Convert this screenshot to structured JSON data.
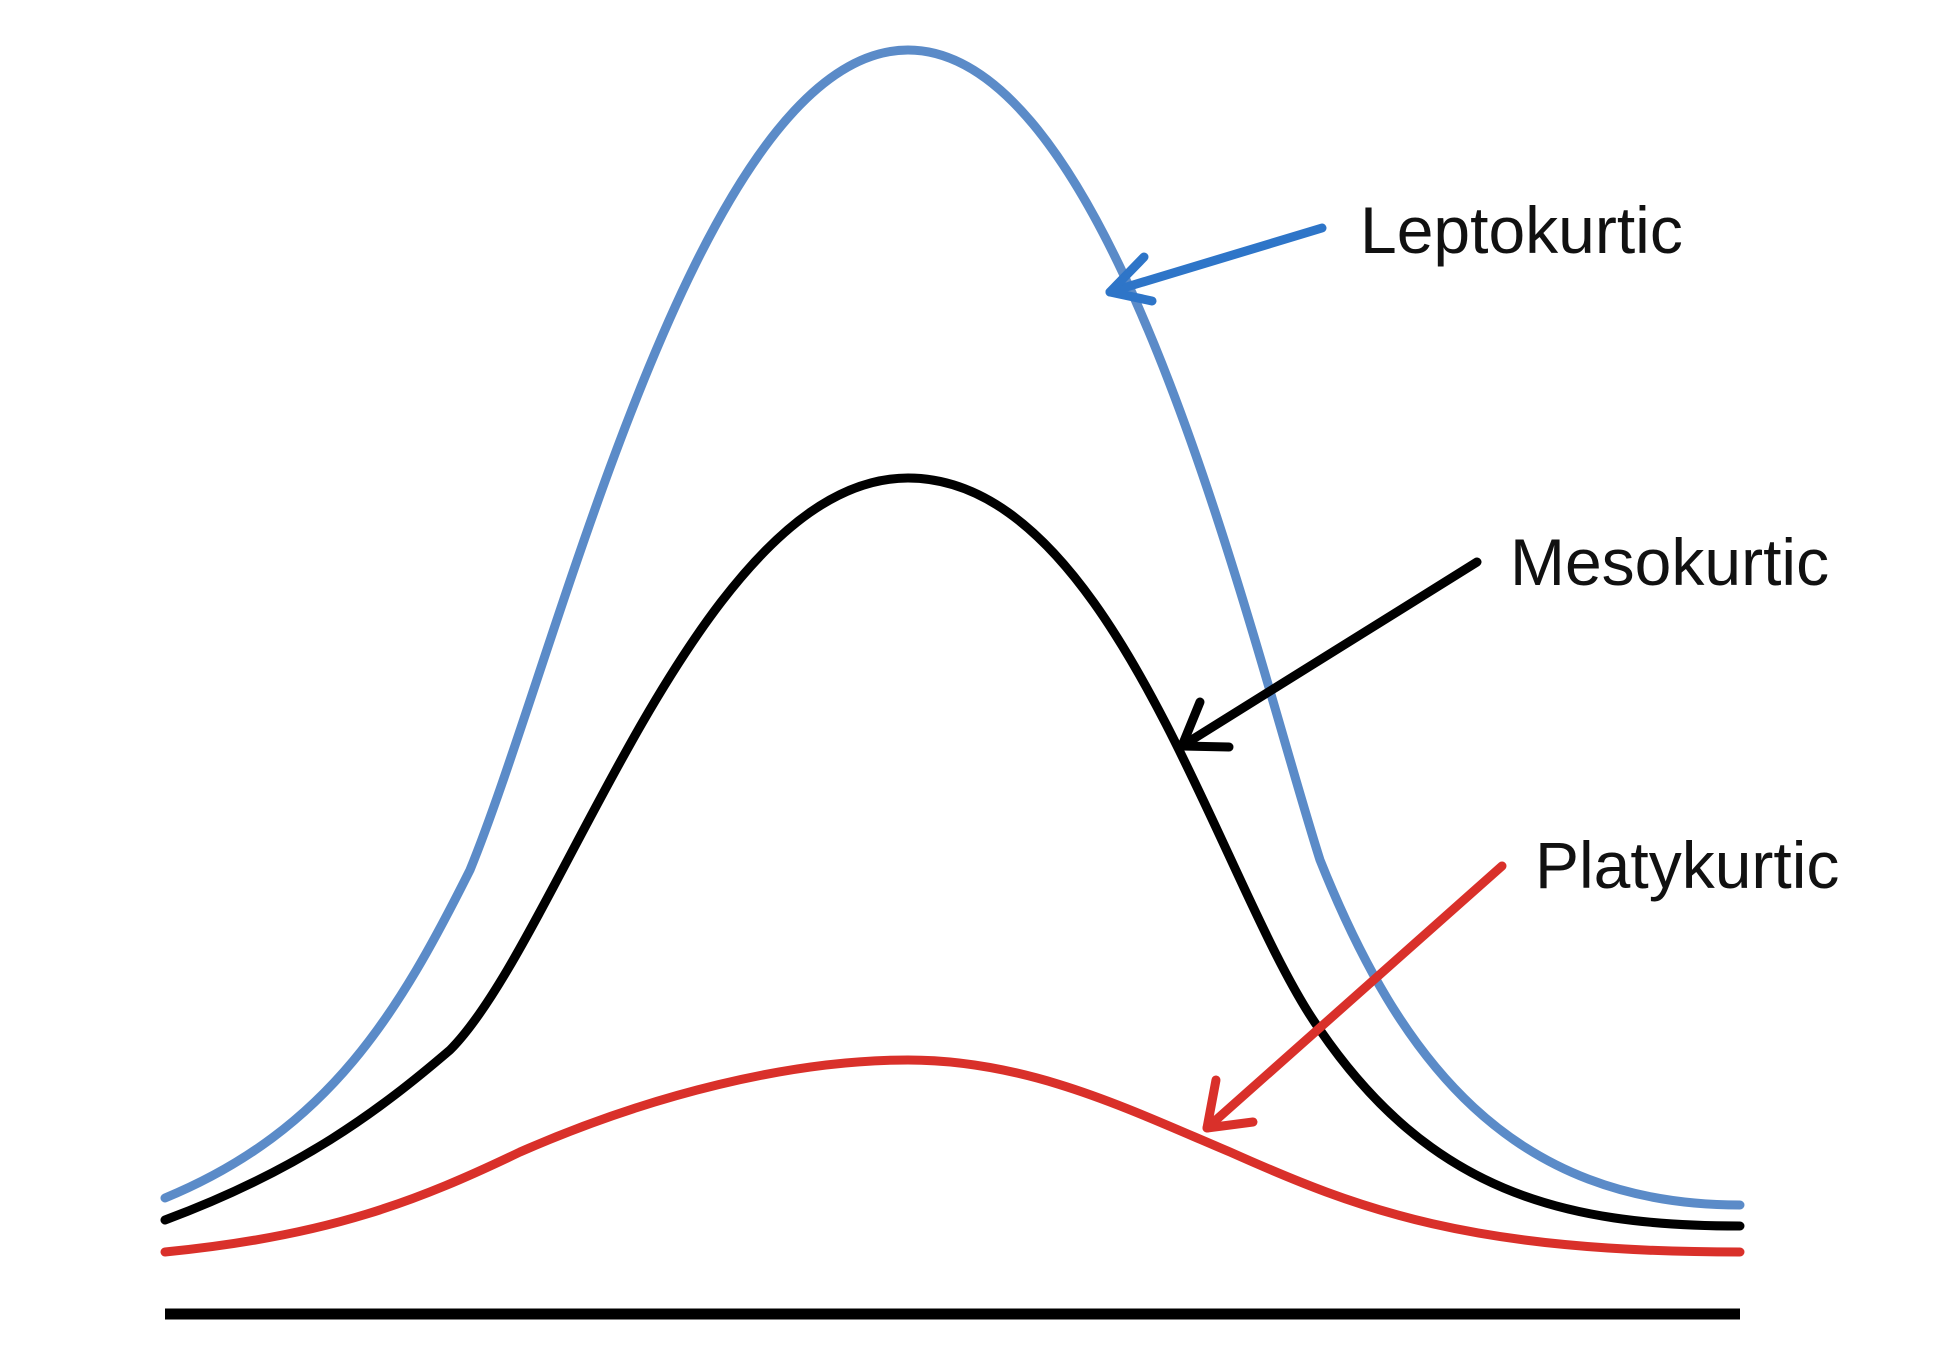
{
  "labels": {
    "leptokurtic": "Leptokurtic",
    "mesokurtic": "Mesokurtic",
    "platykurtic": "Platykurtic"
  },
  "colors": {
    "leptokurtic": "#5B8BC8",
    "leptokurtic_arrow": "#2E75C8",
    "mesokurtic": "#000000",
    "platykurtic": "#D9302A",
    "baseline": "#000000"
  }
}
